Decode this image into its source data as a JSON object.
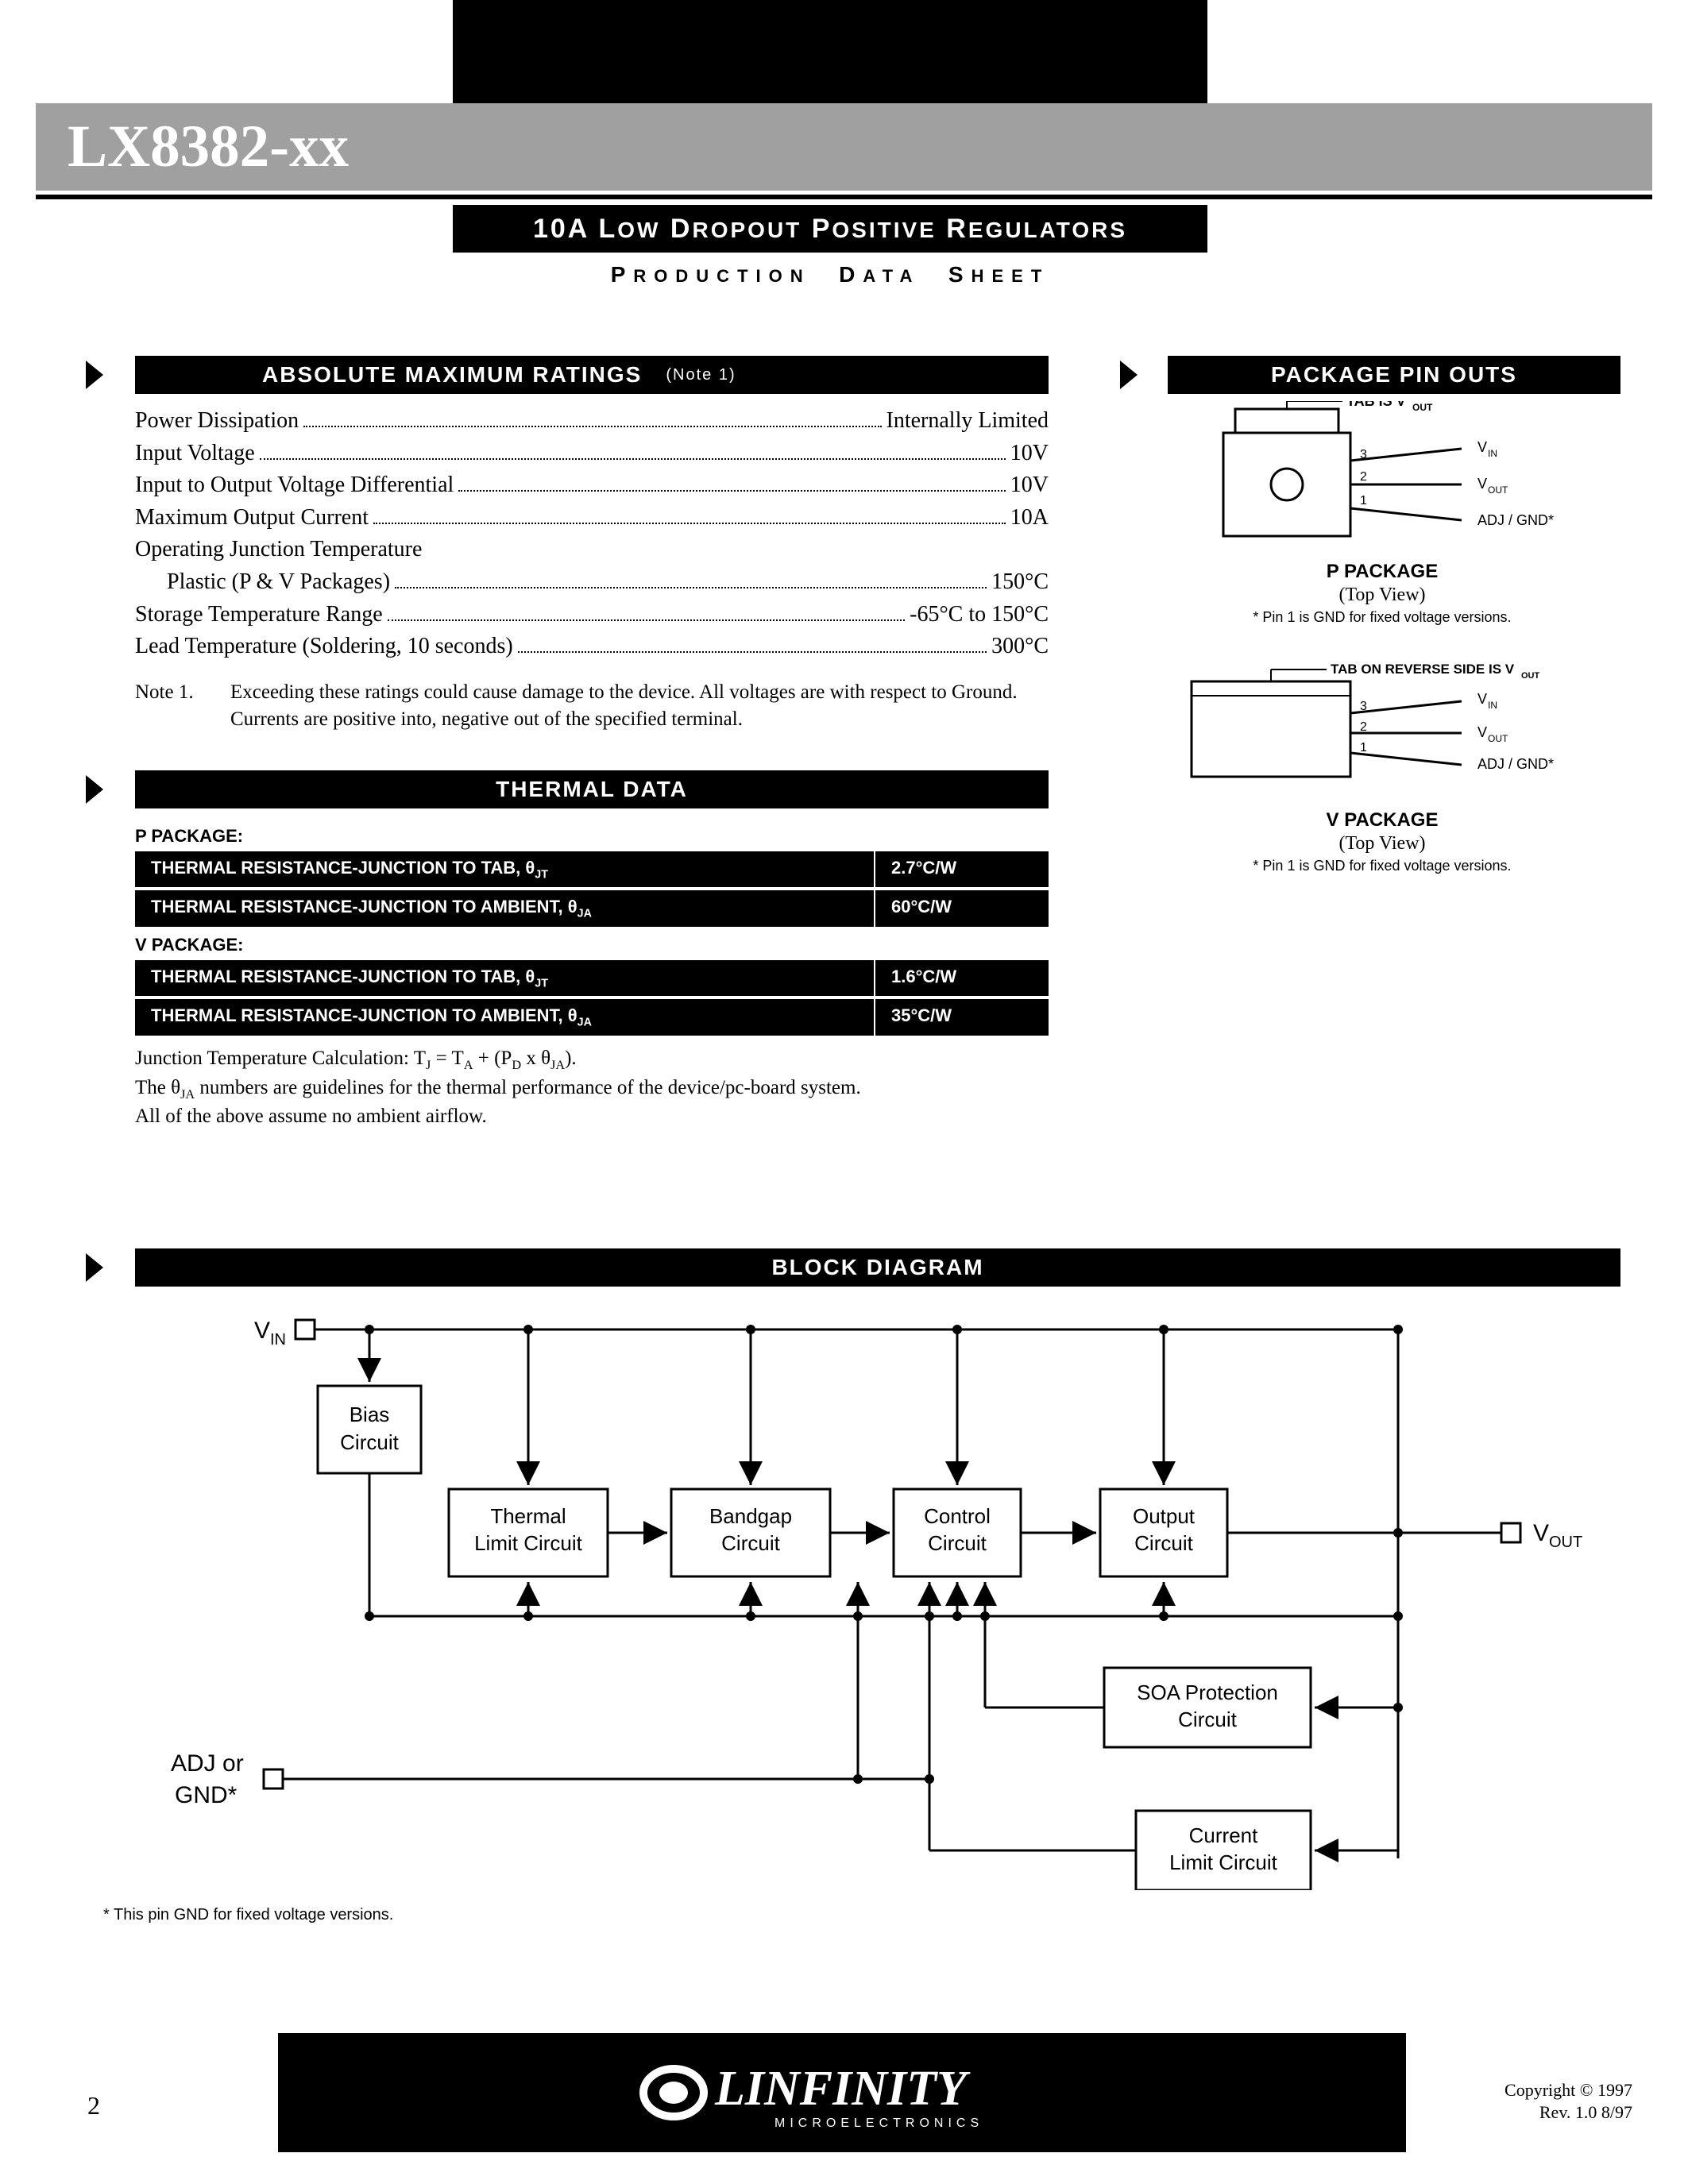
{
  "header": {
    "part_number": "LX8382-xx",
    "subtitle_main": "10A",
    "subtitle_rest": " LOW DROPOUT POSITIVE REGULATORS",
    "production": "PRODUCTION DATA SHEET"
  },
  "sections": {
    "ratings": {
      "title": "ABSOLUTE MAXIMUM RATINGS",
      "note_label": "(Note 1)",
      "rows": [
        {
          "label": "Power Dissipation",
          "value": "Internally Limited"
        },
        {
          "label": "Input Voltage",
          "value": "10V"
        },
        {
          "label": "Input to Output Voltage Differential",
          "value": "10V"
        },
        {
          "label": "Maximum Output Current",
          "value": "10A"
        },
        {
          "label": "Operating Junction Temperature",
          "value": ""
        },
        {
          "label": "Plastic (P & V Packages)",
          "value": "150°C",
          "indent": true
        },
        {
          "label": "Storage Temperature Range",
          "value": "-65°C to 150°C"
        },
        {
          "label": "Lead Temperature (Soldering, 10 seconds)",
          "value": "300°C"
        }
      ],
      "note": "Note 1.  Exceeding these ratings could cause damage to the device. All voltages are with respect to Ground.  Currents are positive into, negative out of the specified terminal."
    },
    "thermal": {
      "title": "THERMAL DATA",
      "p_label": "P PACKAGE:",
      "v_label": "V PACKAGE:",
      "p_rows": [
        {
          "param": "THERMAL RESISTANCE-JUNCTION TO TAB, θJT",
          "value": "2.7°C/W"
        },
        {
          "param": "THERMAL RESISTANCE-JUNCTION TO AMBIENT, θJA",
          "value": "60°C/W"
        }
      ],
      "v_rows": [
        {
          "param": "THERMAL RESISTANCE-JUNCTION TO TAB, θJT",
          "value": "1.6°C/W"
        },
        {
          "param": "THERMAL RESISTANCE-JUNCTION TO AMBIENT, θJA",
          "value": "35°C/W"
        }
      ],
      "notes": [
        "Junction Temperature Calculation:  TJ = TA + (PD x θJA).",
        "The θJA numbers are guidelines for the thermal performance of the device/pc-board system.",
        "All of the above assume no ambient airflow."
      ]
    },
    "pinouts": {
      "title": "PACKAGE PIN OUTS",
      "p": {
        "tab_label": "TAB IS VOUT",
        "pins": [
          {
            "n": "3",
            "label": "VIN"
          },
          {
            "n": "2",
            "label": "VOUT"
          },
          {
            "n": "1",
            "label": "ADJ / GND*"
          }
        ],
        "caption": "P PACKAGE",
        "subcaption": "(Top View)",
        "footnote": "* Pin 1 is GND for fixed voltage versions."
      },
      "v": {
        "tab_label": "TAB ON REVERSE SIDE IS VOUT",
        "pins": [
          {
            "n": "3",
            "label": "VIN"
          },
          {
            "n": "2",
            "label": "VOUT"
          },
          {
            "n": "1",
            "label": "ADJ / GND*"
          }
        ],
        "caption": "V PACKAGE",
        "subcaption": "(Top View)",
        "footnote": "* Pin 1 is GND for fixed voltage versions."
      }
    },
    "block_diagram": {
      "title": "BLOCK DIAGRAM",
      "labels": {
        "vin": "VIN",
        "vout": "VOUT",
        "adj": "ADJ or GND*",
        "bias": "Bias Circuit",
        "thermal": "Thermal Limit Circuit",
        "bandgap": "Bandgap Circuit",
        "control": "Control Circuit",
        "output": "Output Circuit",
        "soa": "SOA Protection Circuit",
        "current": "Current Limit Circuit"
      },
      "footnote": "* This pin GND for fixed voltage versions."
    }
  },
  "footer": {
    "page": "2",
    "brand": "LINFINITY",
    "brand_sub": "MICROELECTRONICS",
    "copyright": "Copyright © 1997",
    "rev": "Rev. 1.0   8/97"
  },
  "colors": {
    "gray": "#a0a0a0",
    "black": "#000000",
    "white": "#ffffff"
  }
}
